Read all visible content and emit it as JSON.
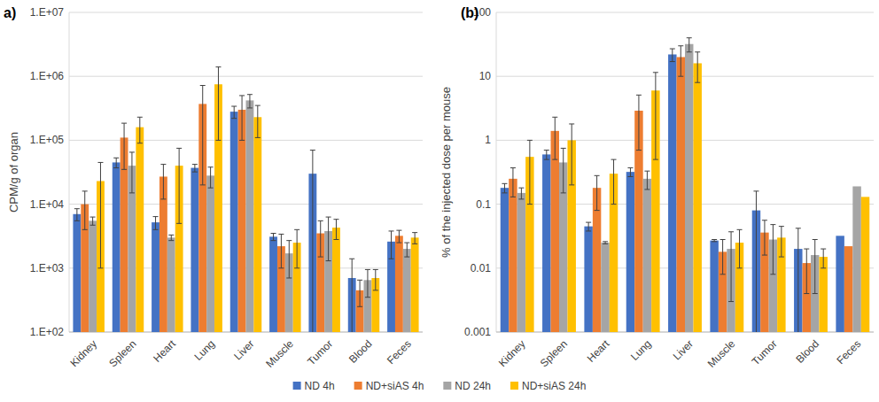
{
  "chart_data": [
    {
      "type": "bar",
      "title": "a)",
      "y_label": "CPM/g of organ",
      "log": "y",
      "grid": true,
      "legend": "bottom",
      "categories": [
        "Kidney",
        "Spleen",
        "Heart",
        "Lung",
        "Liver",
        "Muscle",
        "Tumor",
        "Blood",
        "Feces"
      ],
      "ylim": [
        100,
        10000000
      ],
      "yticks": [
        {
          "value": 100,
          "label": "1.E+02"
        },
        {
          "value": 1000,
          "label": "1.E+03"
        },
        {
          "value": 10000,
          "label": "1.E+04"
        },
        {
          "value": 100000,
          "label": "1.E+05"
        },
        {
          "value": 1000000,
          "label": "1.E+06"
        },
        {
          "value": 10000000,
          "label": "1.E+07"
        }
      ],
      "series": [
        {
          "name": "ND 4h",
          "color": "#4472c4",
          "values": [
            7000,
            45000,
            5200,
            37000,
            280000,
            3100,
            30000,
            700,
            2600
          ],
          "errors": [
            1500,
            8000,
            1200,
            5000,
            60000,
            400,
            40000,
            700,
            1200
          ]
        },
        {
          "name": "ND+siAS 4h",
          "color": "#ed7d31",
          "values": [
            10000,
            110000,
            27000,
            370000,
            300000,
            2200,
            3500,
            450,
            3200
          ],
          "errors": [
            6000,
            75000,
            15000,
            350000,
            200000,
            1200,
            2000,
            200,
            700
          ]
        },
        {
          "name": "ND 24h",
          "color": "#a5a5a5",
          "values": [
            5500,
            40000,
            3000,
            28000,
            420000,
            1700,
            3800,
            650,
            2000
          ],
          "errors": [
            800,
            25000,
            300,
            10000,
            100000,
            1000,
            2500,
            300,
            500
          ]
        },
        {
          "name": "ND+siAS 24h",
          "color": "#ffc000",
          "values": [
            23000,
            160000,
            40000,
            750000,
            230000,
            2500,
            4300,
            700,
            3000
          ],
          "errors": [
            22000,
            70000,
            35000,
            650000,
            120000,
            1500,
            1500,
            250,
            600
          ]
        }
      ]
    },
    {
      "type": "bar",
      "title": "(b)",
      "y_label": "% of the injected dose per mouse",
      "log": "y",
      "grid": true,
      "categories": [
        "Kidney",
        "Spleen",
        "Heart",
        "Lung",
        "Liver",
        "Muscle",
        "Tumor",
        "Blood",
        "Feces"
      ],
      "ylim": [
        0.001,
        100
      ],
      "yticks": [
        0.001,
        0.01,
        0.1,
        1,
        10,
        100
      ],
      "series": [
        {
          "color": "#4472c4",
          "values": [
            0.18,
            0.6,
            0.045,
            0.32,
            22,
            0.027,
            0.08,
            0.02,
            0.032
          ],
          "errors": [
            0.03,
            0.1,
            0.007,
            0.05,
            5,
            0.001,
            0.08,
            0.022,
            null
          ]
        },
        {
          "color": "#ed7d31",
          "values": [
            0.25,
            1.4,
            0.18,
            2.9,
            20,
            0.018,
            0.036,
            0.012,
            0.022
          ],
          "errors": [
            0.12,
            0.9,
            0.1,
            2.2,
            10,
            0.01,
            0.02,
            0.008,
            null
          ]
        },
        {
          "color": "#a5a5a5",
          "values": [
            0.15,
            0.45,
            0.025,
            0.25,
            32,
            0.02,
            0.028,
            0.016,
            0.19
          ],
          "errors": [
            0.03,
            0.3,
            0.001,
            0.08,
            8,
            0.017,
            0.02,
            0.012,
            null
          ]
        },
        {
          "color": "#ffc000",
          "values": [
            0.55,
            1.0,
            0.3,
            6.0,
            16,
            0.025,
            0.03,
            0.015,
            0.13
          ],
          "errors": [
            0.45,
            0.8,
            0.2,
            5.5,
            8,
            0.015,
            0.015,
            0.005,
            null
          ]
        }
      ]
    }
  ]
}
